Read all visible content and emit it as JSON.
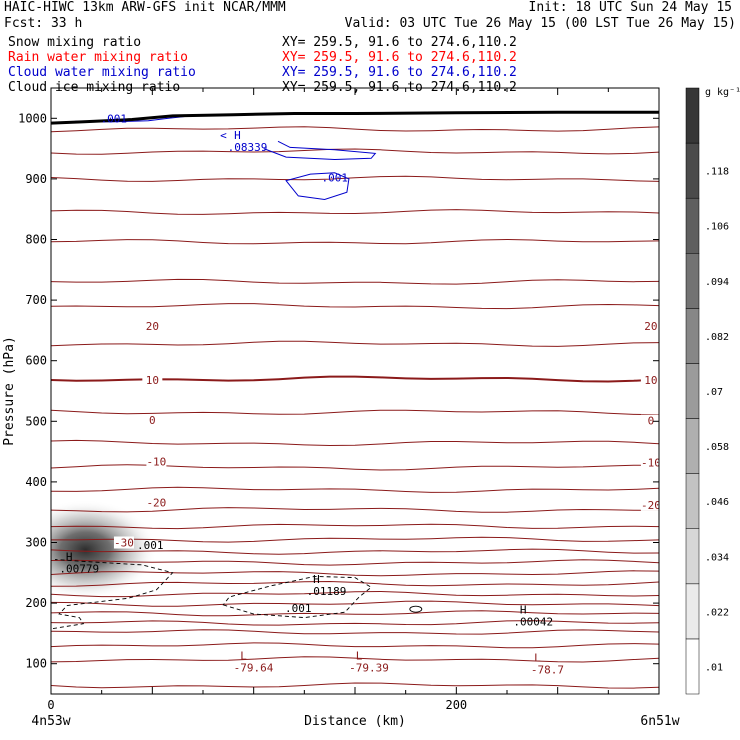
{
  "header": {
    "line1_left": "HAIC-HIWC 13km ARW-GFS init   NCAR/MMM",
    "line1_right": "Init: 18 UTC Sun 24 May 15",
    "line2_left": "Fcst:    33 h",
    "line2_right": "Valid: 03 UTC Tue 26 May 15 (00 LST Tue 26 May 15)",
    "fields": [
      {
        "name": "Snow mixing ratio",
        "xy": "XY= 259.5, 91.6 to 274.6,110.2",
        "color": "#000000"
      },
      {
        "name": "Rain water mixing ratio",
        "xy": "XY= 259.5, 91.6 to 274.6,110.2",
        "color": "#ff0000"
      },
      {
        "name": "Cloud water mixing ratio",
        "xy": "XY= 259.5, 91.6 to 274.6,110.2",
        "color": "#0000cc"
      },
      {
        "name": "Cloud ice mixing ratio",
        "xy": "XY= 259.5, 91.6 to 274.6,110.2",
        "color": "#000000"
      }
    ]
  },
  "colors": {
    "temperature": "#8b1a1a",
    "cloud_water": "#0000cc",
    "cloud_ice": "#000000",
    "terrain": "#000000"
  },
  "chart_data": {
    "type": "contour",
    "xlabel": "Distance (km)",
    "ylabel": "Pressure (hPa)",
    "xlim": [
      0,
      300
    ],
    "ylim": [
      1050,
      50
    ],
    "x_ticks": [
      0,
      200
    ],
    "y_ticks": [
      100,
      200,
      300,
      400,
      500,
      600,
      700,
      800,
      900,
      1000
    ],
    "x_end_labels": {
      "left": "4n53w",
      "right": "6n51w"
    },
    "colorbar": {
      "units": "g kg⁻¹",
      "levels": [
        ".01",
        ".022",
        ".034",
        ".046",
        ".058",
        ".07",
        ".082",
        ".094",
        ".106",
        ".118"
      ]
    },
    "temperature_contours": {
      "interval_c": 5,
      "lines": [
        {
          "p": 64
        },
        {
          "p": 107
        },
        {
          "p": 130
        },
        {
          "p": 152
        },
        {
          "p": 167
        },
        {
          "p": 183
        },
        {
          "p": 199
        },
        {
          "p": 215
        },
        {
          "p": 232
        },
        {
          "p": 249
        },
        {
          "p": 267
        },
        {
          "p": 285
        },
        {
          "p": 305
        },
        {
          "p": 327
        },
        {
          "p": 354
        },
        {
          "p": 387
        },
        {
          "p": 424
        },
        {
          "p": 464
        },
        {
          "p": 515
        },
        {
          "p": 570
        },
        {
          "p": 628
        },
        {
          "p": 690
        },
        {
          "p": 730
        },
        {
          "p": 796
        },
        {
          "p": 845
        },
        {
          "p": 900
        },
        {
          "p": 945
        },
        {
          "p": 982
        }
      ],
      "labels": [
        {
          "text": "-30",
          "x": 36,
          "p": 300
        },
        {
          "text": "-20",
          "x": 52,
          "p": 366
        },
        {
          "text": "-20",
          "x": 296,
          "p": 362
        },
        {
          "text": "-10",
          "x": 52,
          "p": 434
        },
        {
          "text": "-10",
          "x": 296,
          "p": 432
        },
        {
          "text": "0",
          "x": 50,
          "p": 502
        },
        {
          "text": "0",
          "x": 296,
          "p": 501
        },
        {
          "text": "10",
          "x": 50,
          "p": 568
        },
        {
          "text": "10",
          "x": 296,
          "p": 568
        },
        {
          "text": "20",
          "x": 50,
          "p": 657
        },
        {
          "text": "20",
          "x": 296,
          "p": 657
        }
      ]
    },
    "extrema": [
      {
        "type": "L",
        "value": "-79.64",
        "x": 95,
        "p": 107,
        "color": "#8b1a1a"
      },
      {
        "type": "L",
        "value": "-79.39",
        "x": 152,
        "p": 107,
        "color": "#8b1a1a"
      },
      {
        "type": "L",
        "value": "-78.7",
        "x": 240,
        "p": 104,
        "color": "#8b1a1a"
      },
      {
        "type": "H",
        "value": ".00042",
        "x": 233,
        "p": 183,
        "color": "#000000"
      },
      {
        "type": "H",
        "value": ".01189",
        "x": 131,
        "p": 233,
        "color": "#000000"
      },
      {
        "type": "H",
        "value": ".00779",
        "x": 9,
        "p": 270,
        "color": "#000000"
      },
      {
        "type": "H",
        "value": ".08339",
        "x": 92,
        "p": 966,
        "color": "#0000cc"
      }
    ],
    "cloud_ice_contours": {
      "level": ".001",
      "labels": [
        {
          "text": ".001",
          "x": 122,
          "p": 192
        },
        {
          "text": ".001",
          "x": 49,
          "p": 296
        }
      ]
    },
    "cloud_water_contours": {
      "level": ".001",
      "labels": [
        {
          "text": ".001",
          "x": 140,
          "p": 902
        },
        {
          "text": ".001",
          "x": 31,
          "p": 1000
        }
      ]
    },
    "snow_max": {
      "x": 17,
      "p": 288,
      "value_g_kg": 0.118
    },
    "terrain_surface_hpa": [
      {
        "x": 0,
        "p": 992
      },
      {
        "x": 15,
        "p": 994
      },
      {
        "x": 40,
        "p": 998
      },
      {
        "x": 60,
        "p": 1004
      },
      {
        "x": 90,
        "p": 1006
      },
      {
        "x": 120,
        "p": 1008
      },
      {
        "x": 150,
        "p": 1008
      },
      {
        "x": 200,
        "p": 1009
      },
      {
        "x": 250,
        "p": 1010
      },
      {
        "x": 300,
        "p": 1010
      }
    ]
  }
}
